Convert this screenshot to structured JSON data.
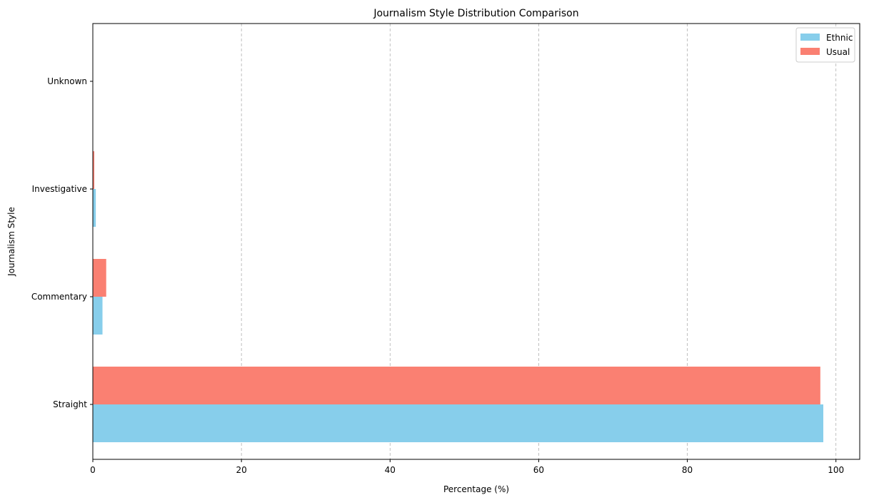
{
  "chart_data": {
    "type": "bar",
    "orientation": "horizontal",
    "title": "Journalism Style Distribution Comparison",
    "xlabel": "Percentage (%)",
    "ylabel": "Journalism Style",
    "categories": [
      "Straight",
      "Commentary",
      "Investigative",
      "Unknown"
    ],
    "series": [
      {
        "name": "Ethnic",
        "color": "#87CEEB",
        "values": [
          98.3,
          1.3,
          0.4,
          0.0
        ]
      },
      {
        "name": "Usual",
        "color": "#FA8072",
        "values": [
          97.9,
          1.8,
          0.2,
          0.0
        ]
      }
    ],
    "xlim": [
      0,
      103.2
    ],
    "xticks": [
      0,
      20,
      40,
      60,
      80,
      100
    ],
    "grid": "x-dashed",
    "legend": "top-right"
  }
}
